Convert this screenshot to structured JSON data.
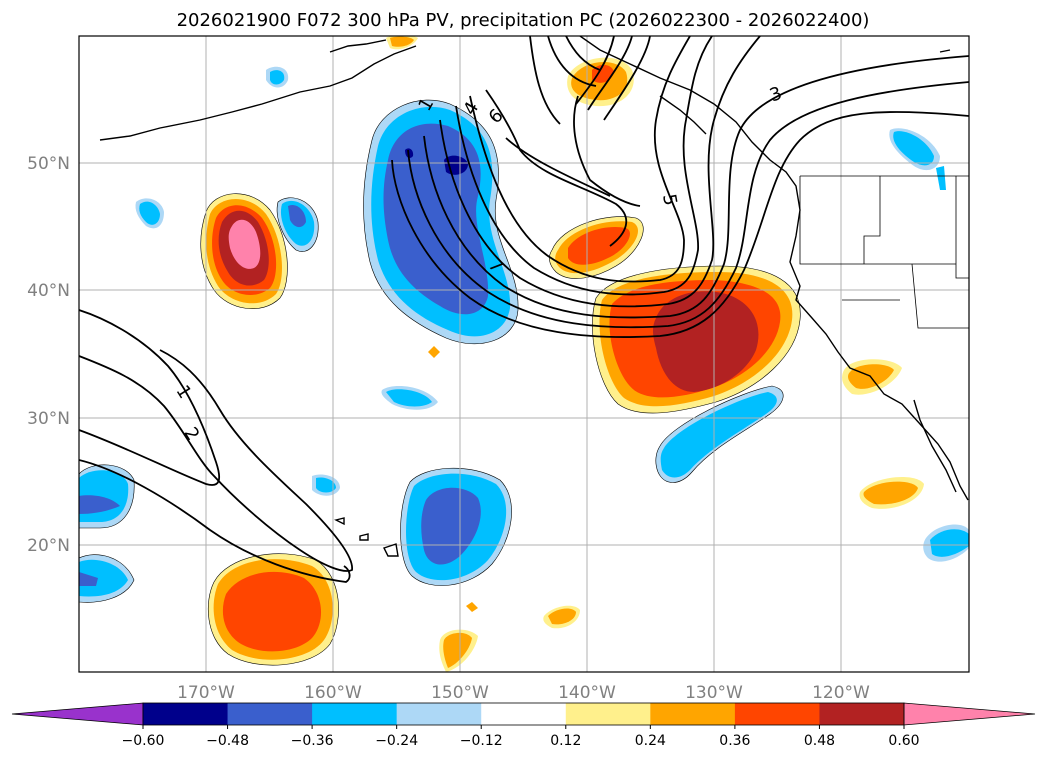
{
  "chart_data": {
    "type": "contour",
    "title": "2026021900 F072 300 hPa PV, precipitation PC (2026022300 - 2026022400)",
    "x_ticks": [
      "170°W",
      "160°W",
      "150°W",
      "140°W",
      "130°W",
      "120°W"
    ],
    "y_ticks": [
      "50°N",
      "40°N",
      "30°N",
      "20°N"
    ],
    "lon_range": [
      -180,
      -110
    ],
    "lat_range": [
      10,
      60
    ],
    "pv_contour_labels": [
      "1",
      "2",
      "3",
      "4",
      "5",
      "6",
      "7",
      "1"
    ],
    "colorbar": {
      "ticks": [
        "−0.60",
        "−0.48",
        "−0.36",
        "−0.24",
        "−0.12",
        "0.12",
        "0.24",
        "0.36",
        "0.48",
        "0.60"
      ],
      "levels": [
        -0.6,
        -0.48,
        -0.36,
        -0.24,
        -0.12,
        0.12,
        0.24,
        0.36,
        0.48,
        0.6
      ],
      "colors": [
        "#9932cc",
        "#00008b",
        "#3a5fcd",
        "#00bfff",
        "#add8f6",
        "#ffffff",
        "#fff08c",
        "#ffa500",
        "#ff4500",
        "#b22222",
        "#ff82ab"
      ],
      "extend": "both"
    }
  }
}
